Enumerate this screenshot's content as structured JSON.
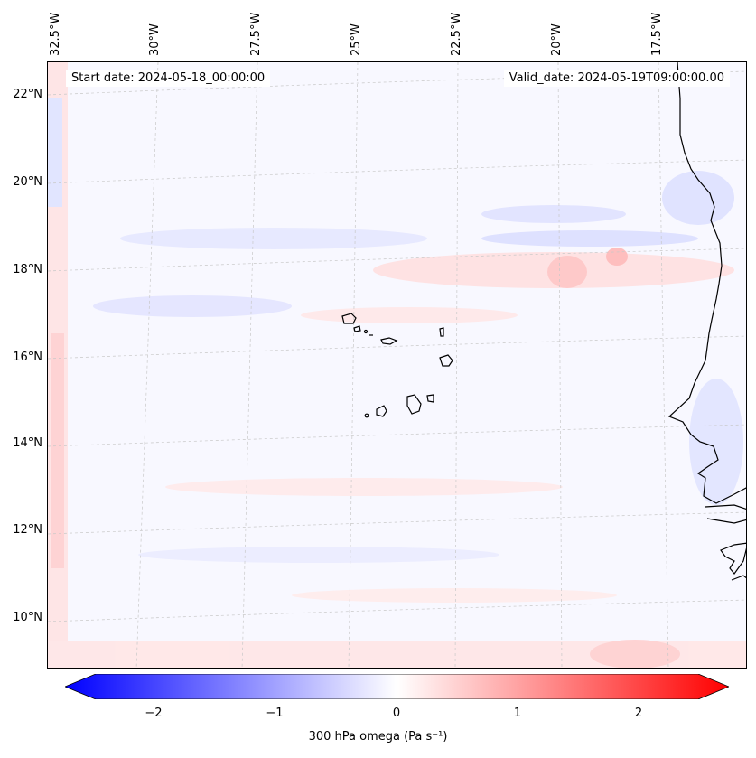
{
  "map": {
    "start_label": "Start date: 2024-05-18_00:00:00",
    "valid_label": "Valid_date: 2024-05-19T09:00:00.00",
    "lat_ticks": [
      "22°N",
      "20°N",
      "18°N",
      "16°N",
      "14°N",
      "12°N",
      "10°N"
    ],
    "lon_ticks": [
      "32.5°W",
      "30°W",
      "27.5°W",
      "25°W",
      "22.5°W",
      "20°W",
      "17.5°W"
    ],
    "variable": "300 hPa omega",
    "colorbar": {
      "label": "300 hPa omega (Pa s⁻¹)",
      "ticks": [
        "−2",
        "−1",
        "0",
        "1",
        "2"
      ],
      "range": [
        -2.75,
        2.75
      ],
      "colormap": [
        "#0000ff",
        "#ffffff",
        "#ff0000"
      ]
    }
  }
}
